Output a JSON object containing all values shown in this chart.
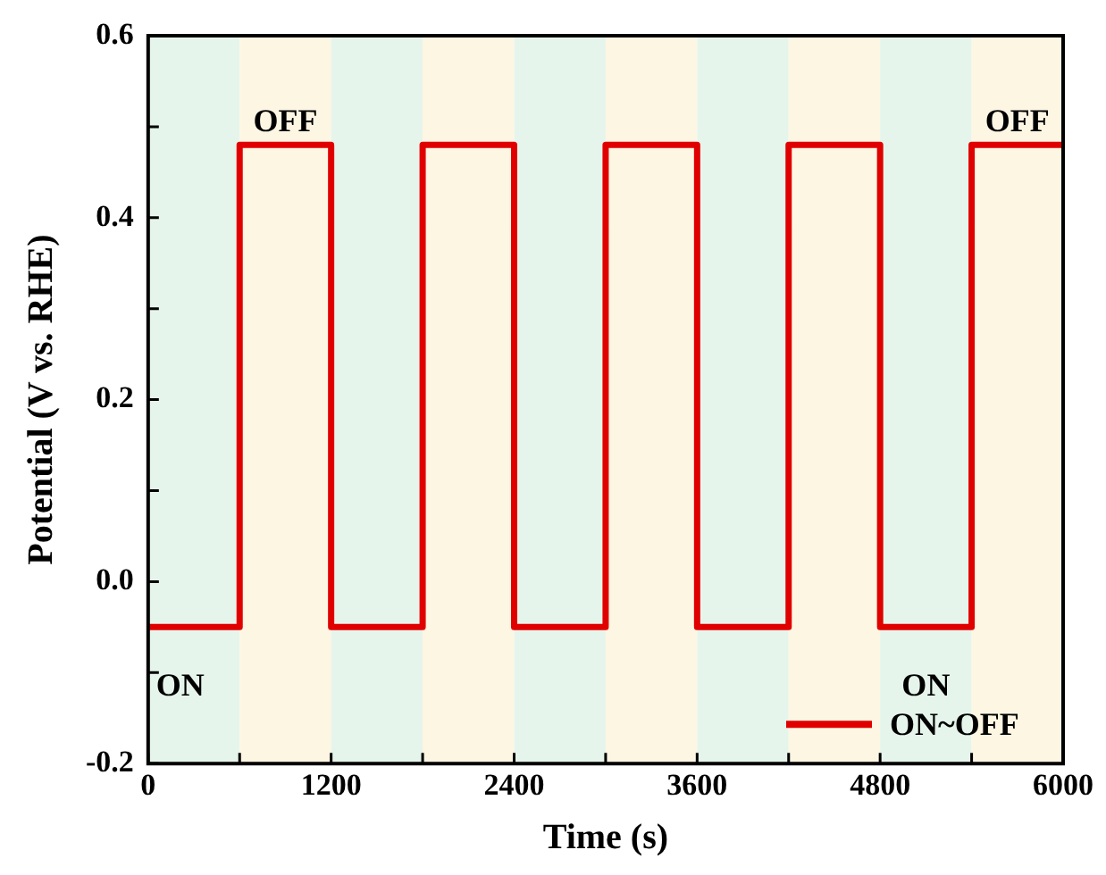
{
  "chart_data": {
    "type": "step",
    "xlabel": "Time (s)",
    "ylabel": "Potential (V vs. RHE)",
    "x": [
      0,
      600,
      1200,
      1800,
      2400,
      3000,
      3600,
      4200,
      4800,
      5400,
      6000
    ],
    "series": [
      {
        "name": "ON~OFF",
        "color": "#e00000",
        "values": [
          -0.05,
          0.48,
          -0.05,
          0.48,
          -0.05,
          0.48,
          -0.05,
          0.48,
          -0.05,
          0.48,
          0.48
        ]
      }
    ],
    "xlim": [
      0,
      6000
    ],
    "xticks": [
      0,
      {
        "value": 600,
        "label": null
      },
      1200,
      {
        "value": 1800,
        "label": null
      },
      2400,
      {
        "value": 3000,
        "label": null
      },
      3600,
      {
        "value": 4200,
        "label": null
      },
      4800,
      {
        "value": 5400,
        "label": null
      },
      6000
    ],
    "ylim": [
      -0.2,
      0.6
    ],
    "yticks": [
      {
        "value": -0.2,
        "label": "-0.2"
      },
      {
        "value": -0.1,
        "label": null
      },
      {
        "value": 0,
        "label": "0.0"
      },
      {
        "value": 0.1,
        "label": null
      },
      {
        "value": 0.2,
        "label": "0.2"
      },
      {
        "value": 0.3,
        "label": null
      },
      {
        "value": 0.4,
        "label": "0.4"
      },
      {
        "value": 0.5,
        "label": null
      },
      {
        "value": 0.6,
        "label": "0.6"
      }
    ],
    "bands": [
      {
        "axis": "x",
        "from": 0,
        "to": 600,
        "color": "#e6f5ec"
      },
      {
        "axis": "x",
        "from": 600,
        "to": 1200,
        "color": "#fdf6e3"
      },
      {
        "axis": "x",
        "from": 1200,
        "to": 1800,
        "color": "#e6f5ec"
      },
      {
        "axis": "x",
        "from": 1800,
        "to": 2400,
        "color": "#fdf6e3"
      },
      {
        "axis": "x",
        "from": 2400,
        "to": 3000,
        "color": "#e6f5ec"
      },
      {
        "axis": "x",
        "from": 3000,
        "to": 3600,
        "color": "#fdf6e3"
      },
      {
        "axis": "x",
        "from": 3600,
        "to": 4200,
        "color": "#e6f5ec"
      },
      {
        "axis": "x",
        "from": 4200,
        "to": 4800,
        "color": "#fdf6e3"
      },
      {
        "axis": "x",
        "from": 4800,
        "to": 5400,
        "color": "#e6f5ec"
      },
      {
        "axis": "x",
        "from": 5400,
        "to": 6000,
        "color": "#fdf6e3"
      }
    ],
    "annotations": [
      "OFF",
      "OFF",
      "ON",
      "ON"
    ],
    "legend": "bottom right",
    "grid": false
  }
}
